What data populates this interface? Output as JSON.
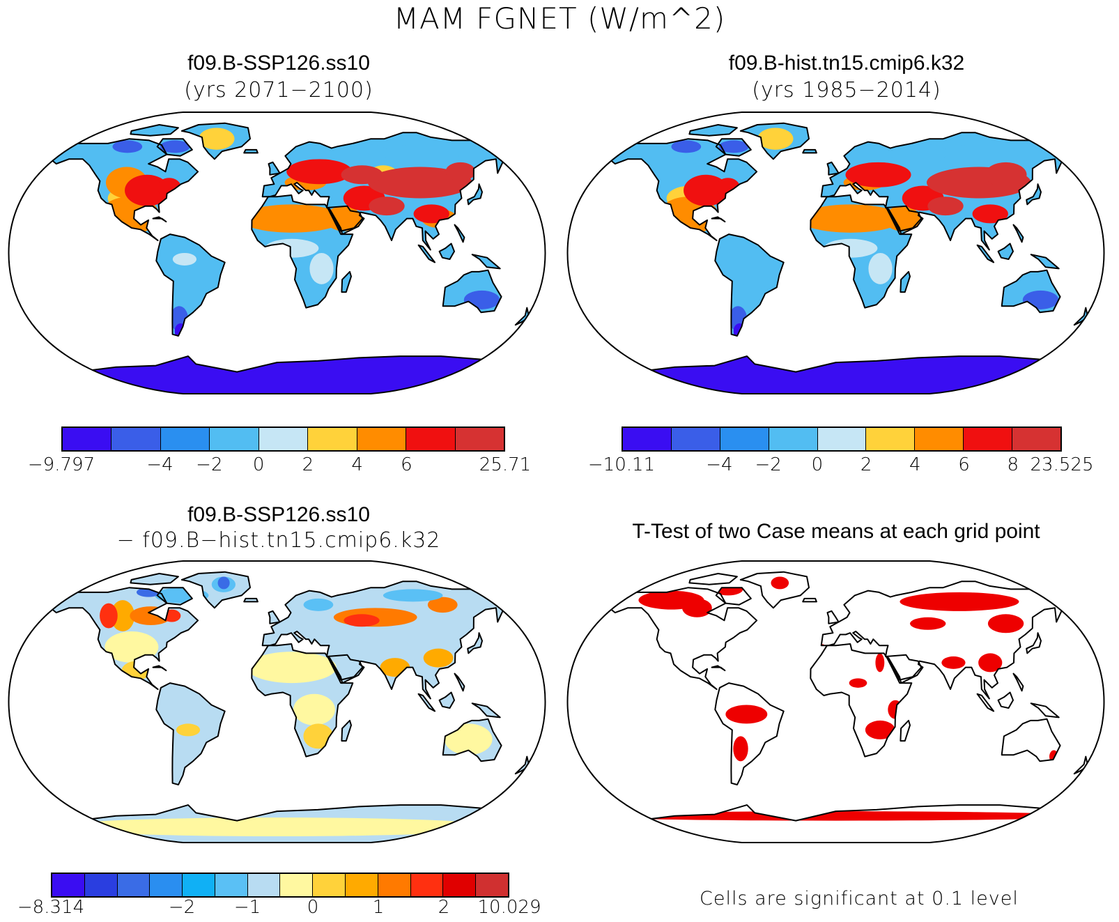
{
  "title": "MAM FGNET (W/m^2)",
  "panels": [
    {
      "id": "ssp126",
      "title": "f09.B-SSP126.ss10",
      "subtitle": "(yrs 2071−2100)",
      "colorbar": {
        "colors": [
          "#3a0df2",
          "#3a5ee8",
          "#2a8ff0",
          "#52bdf2",
          "#c6e6f5",
          "#ffd23a",
          "#ff8c00",
          "#f01010",
          "#d63232"
        ],
        "labels": [
          "−9.797",
          "−4",
          "−2",
          "0",
          "2",
          "4",
          "6",
          "25.71"
        ]
      }
    },
    {
      "id": "hist",
      "title": "f09.B-hist.tn15.cmip6.k32",
      "subtitle": "(yrs 1985−2014)",
      "colorbar": {
        "colors": [
          "#3a0df2",
          "#3a5ee8",
          "#2a8ff0",
          "#52bdf2",
          "#c6e6f5",
          "#ffd23a",
          "#ff8c00",
          "#f01010",
          "#d63232"
        ],
        "labels": [
          "−10.11",
          "−4",
          "−2",
          "0",
          "2",
          "4",
          "6",
          "8",
          "23.525"
        ]
      }
    },
    {
      "id": "diff",
      "title": "f09.B-SSP126.ss10",
      "subtitle": "− f09.B−hist.tn15.cmip6.k32",
      "colorbar": {
        "colors": [
          "#3a0df2",
          "#2a3ee0",
          "#3a6ce6",
          "#2a8ef0",
          "#10b0f5",
          "#5ac0f5",
          "#b8dcf2",
          "#fff8a0",
          "#ffd23a",
          "#ffaa00",
          "#ff7a00",
          "#ff3010",
          "#e00000",
          "#d03030"
        ],
        "labels": [
          "−8.314",
          "−2",
          "−1",
          "0",
          "1",
          "2",
          "10.029"
        ]
      }
    },
    {
      "id": "ttest",
      "title": "T-Test of two Case means at each grid point",
      "note": "Cells are significant at 0.1 level"
    }
  ],
  "colors": {
    "significant": "#ee0000",
    "coast": "#000000"
  }
}
